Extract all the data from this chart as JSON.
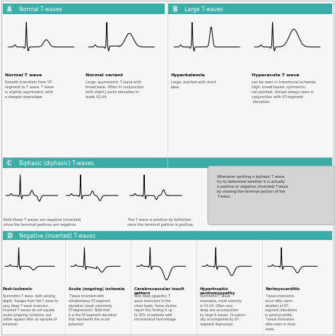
{
  "header_bg": "#3aada8",
  "header_text_color": "white",
  "bg_color": "#f7f7f7",
  "text_color": "#333333",
  "note_bg": "#d0d0d0",
  "panel_A_traces": [
    {
      "name": "Normal T wave",
      "desc": "Smooth transition from ST-\nsegment to T wave. T wave\nis slightly asymmetric with\na steeper downslope."
    },
    {
      "name": "Normal variant",
      "desc": "Large, asymmetric T wave with\nbroad base. Often in conjunction\nwith slight J point elevation in\nleads V2-V4."
    }
  ],
  "panel_B_traces": [
    {
      "name": "Hyperkalemia",
      "desc": "Large, pointed with short\nbase."
    },
    {
      "name": "Hyperacute T wave",
      "desc": "can be seen in transmural ischemia.\nHigh, broad based, symmetric,\nnot pointed. Almost always seen in\nconjunction with ST-segment\n elevation."
    }
  ],
  "panel_C_desc_left": "Both these T waves are negative (inverted)\nsince the terminal portions are negative.",
  "panel_C_desc_right": "This T wave is positive by definition\nsince the terminal portion is positive.",
  "panel_D_traces": [
    {
      "name": "Post-ischemic",
      "desc": "Symmetric T wave, with varying\ndepth. Ranges from flat T wave to\nvery deep T wave inversion.\nInverted T waves do not equate\nacute (ongoing) ischemia, but\nrather appear after an episode of\nischemia!"
    },
    {
      "name": "Acute (ongoing) ischemia",
      "desc": "T wave inversion with\nsimultaneous ST-segment\ndeviation (most commonly\nST-depression). Note that\nit is the ST-segment deviation\nthat represents the acute\nischemia!"
    },
    {
      "name": "Cerebrovascular insult\npattern",
      "desc": "Very deep (gigantic) T\nwave inversions in the\nchest leads. Some studies\nreport this finding in up\nto 30% of patients with\nintracerebral hemorrhage."
    },
    {
      "name": "Hypertrophic\ncardiomyopathy",
      "desc": "Symmetric T wave\ninversions, most comonly\nin V1-V3. Often very\ndeep and accompanied\nby large R waves. Occasion-\nally accompanied by ST-\nsegment depression."
    },
    {
      "name": "Perimyocarditis",
      "desc": "T wave inversions\noccur after norm-\nalization of ST-\nsegment elevations\nin perimycarditis.\nT wave inversions\noften seen in most\nleads."
    }
  ],
  "note_text": "Whenever spotting a biphasic T wave,\ntry to determine whether it is actually\na positive or negative (inverted) T-wave\nby viewing the terminal portion of the\nT wave."
}
